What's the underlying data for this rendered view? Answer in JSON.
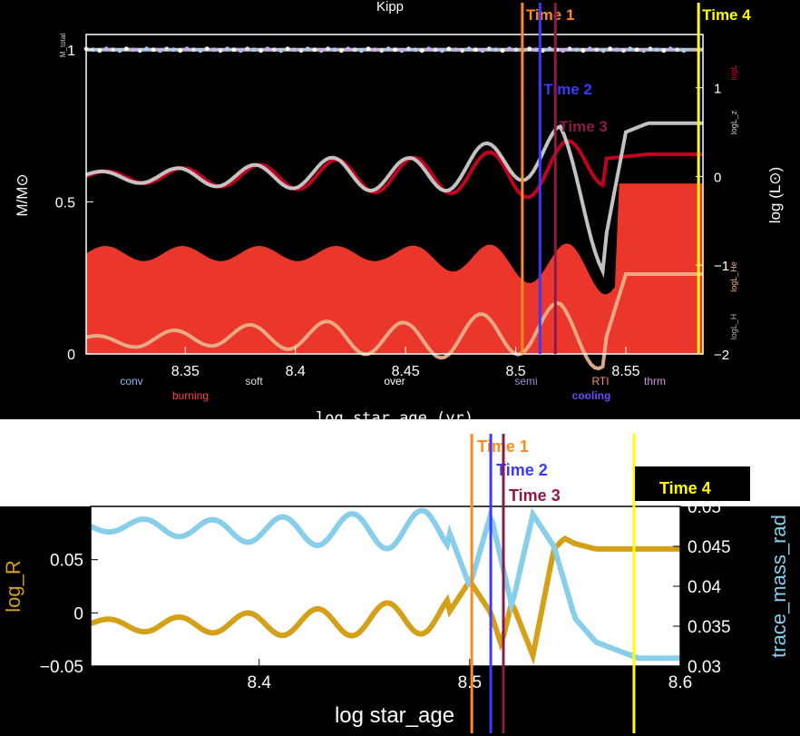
{
  "chart_data": [
    {
      "type": "area",
      "title": "Kipp",
      "xlabel": "log star_age (yr)",
      "ylabel": "M/M⊙",
      "ylabel_right": "log (L⊙)",
      "xlim": [
        8.305,
        8.585
      ],
      "ylim": [
        0,
        1.05
      ],
      "ylim_right": [
        -2,
        1.6
      ],
      "x_ticks": [
        "8.35",
        "8.4",
        "8.45",
        "8.5",
        "8.55"
      ],
      "y_ticks": [
        "0",
        "0.5",
        "1"
      ],
      "y_right_ticks": [
        "−2",
        "−1",
        "0",
        "1"
      ],
      "top_left_label": "M_total",
      "right_side_labels": [
        "logL",
        "logL_z",
        "logL_He",
        "logL_H"
      ],
      "legend": [
        "conv",
        "burning",
        "soft",
        "over",
        "semi",
        "cooling",
        "RTI",
        "thrm"
      ],
      "legend_colors": {
        "conv": "#88bbee",
        "burning": "#ff4a3a",
        "soft": "#dddddd",
        "over": "#ffffff",
        "semi": "#9a8ad8",
        "cooling": "#6a4cff",
        "RTI": "#ff8a80",
        "thrm": "#c79ae6"
      },
      "series": [
        {
          "name": "logL",
          "color": "#cc0022",
          "x": [
            8.305,
            8.33,
            8.36,
            8.39,
            8.42,
            8.45,
            8.48,
            8.5,
            8.52,
            8.54,
            8.56,
            8.585
          ],
          "values": [
            0.0,
            0.0,
            0.0,
            0.0,
            0.02,
            0.0,
            0.05,
            0.0,
            0.1,
            0.2,
            0.25,
            0.25
          ]
        },
        {
          "name": "logL_z",
          "color": "#cccccc",
          "x": [
            8.305,
            8.33,
            8.36,
            8.39,
            8.42,
            8.45,
            8.48,
            8.5,
            8.52,
            8.54,
            8.55,
            8.56,
            8.585
          ],
          "values": [
            0.0,
            0.0,
            0.0,
            0.0,
            0.05,
            0.0,
            0.1,
            0.2,
            0.3,
            -0.8,
            0.5,
            0.6,
            0.6
          ]
        },
        {
          "name": "logL_He",
          "color": "#e8b08a",
          "x": [
            8.305,
            8.33,
            8.36,
            8.39,
            8.42,
            8.45,
            8.48,
            8.5,
            8.52,
            8.54,
            8.55,
            8.585
          ],
          "values": [
            -1.85,
            -1.85,
            -1.8,
            -1.8,
            -1.8,
            -1.85,
            -1.8,
            -1.75,
            -1.7,
            -1.9,
            -1.1,
            -1.1
          ]
        }
      ],
      "markers": [
        {
          "label": "Time 1",
          "x": 8.503,
          "color": "#ff8c1a"
        },
        {
          "label": "Time 2",
          "x": 8.511,
          "color": "#3a3aff"
        },
        {
          "label": "Time 3",
          "x": 8.518,
          "color": "#8b1a4a"
        },
        {
          "label": "Time 4",
          "x": 8.583,
          "color": "#ffff00"
        }
      ]
    },
    {
      "type": "line",
      "xlabel": "log star_age",
      "ylabel": "log_R",
      "ylabel_right": "trace_mass_rad",
      "xlim": [
        8.32,
        8.6
      ],
      "ylim": [
        -0.05,
        0.1
      ],
      "ylim_right": [
        0.03,
        0.05
      ],
      "x_ticks": [
        "8.4",
        "8.5",
        "8.6"
      ],
      "y_ticks": [
        "−0.05",
        "0",
        "0.05"
      ],
      "y_right_ticks": [
        "0.03",
        "0.035",
        "0.04",
        "0.045",
        "0.05"
      ],
      "series": [
        {
          "name": "log_R",
          "color": "#d4a017",
          "x": [
            8.32,
            8.35,
            8.38,
            8.41,
            8.44,
            8.47,
            8.49,
            8.5,
            8.51,
            8.515,
            8.52,
            8.53,
            8.54,
            8.545,
            8.55,
            8.56,
            8.6
          ],
          "values": [
            -0.01,
            -0.012,
            -0.01,
            -0.01,
            -0.008,
            -0.005,
            0.0,
            0.03,
            0.0,
            -0.03,
            0.01,
            -0.04,
            0.06,
            0.07,
            0.065,
            0.06,
            0.06
          ]
        },
        {
          "name": "trace_mass_rad",
          "color": "#87ceeb",
          "x": [
            8.32,
            8.35,
            8.38,
            8.41,
            8.44,
            8.47,
            8.49,
            8.5,
            8.51,
            8.52,
            8.53,
            8.54,
            8.55,
            8.56,
            8.58,
            8.6
          ],
          "values": [
            0.0475,
            0.0475,
            0.047,
            0.047,
            0.047,
            0.047,
            0.047,
            0.04,
            0.049,
            0.0375,
            0.049,
            0.045,
            0.036,
            0.033,
            0.031,
            0.031
          ]
        }
      ],
      "markers": [
        {
          "label": "Time 1",
          "x": 8.501,
          "color": "#ff8c1a"
        },
        {
          "label": "Time 2",
          "x": 8.51,
          "color": "#3a3aff"
        },
        {
          "label": "Time 3",
          "x": 8.516,
          "color": "#8b1a4a"
        },
        {
          "label": "Time 4",
          "x": 8.578,
          "color": "#ffff00"
        }
      ]
    }
  ]
}
